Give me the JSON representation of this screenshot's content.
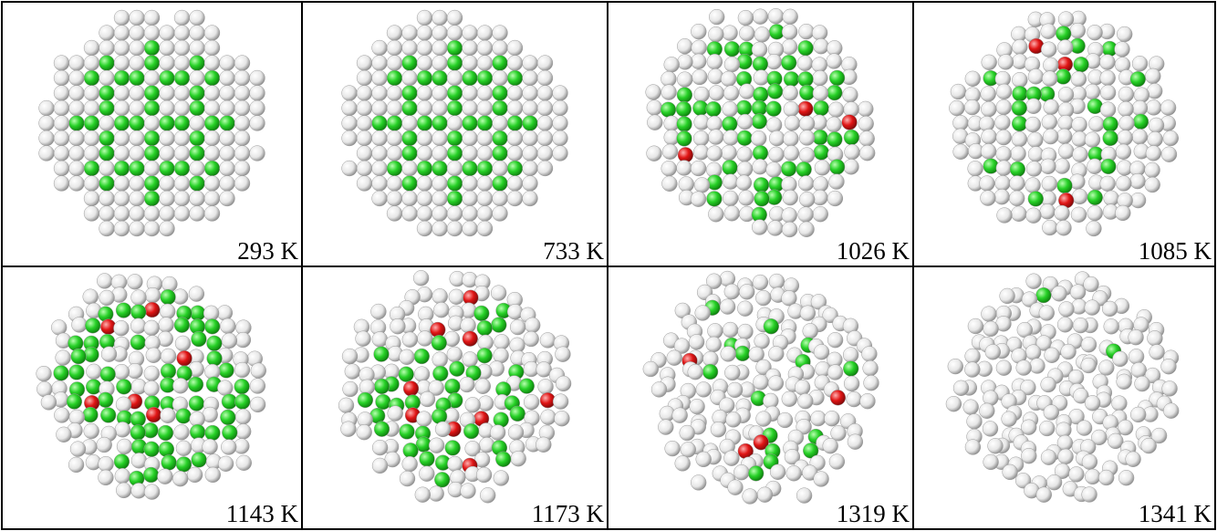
{
  "panels": [
    {
      "label": "293 K"
    },
    {
      "label": "733 K"
    },
    {
      "label": "1026 K"
    },
    {
      "label": "1085 K"
    },
    {
      "label": "1143 K"
    },
    {
      "label": "1173 K"
    },
    {
      "label": "1319 K"
    },
    {
      "label": "1341 K"
    }
  ]
}
